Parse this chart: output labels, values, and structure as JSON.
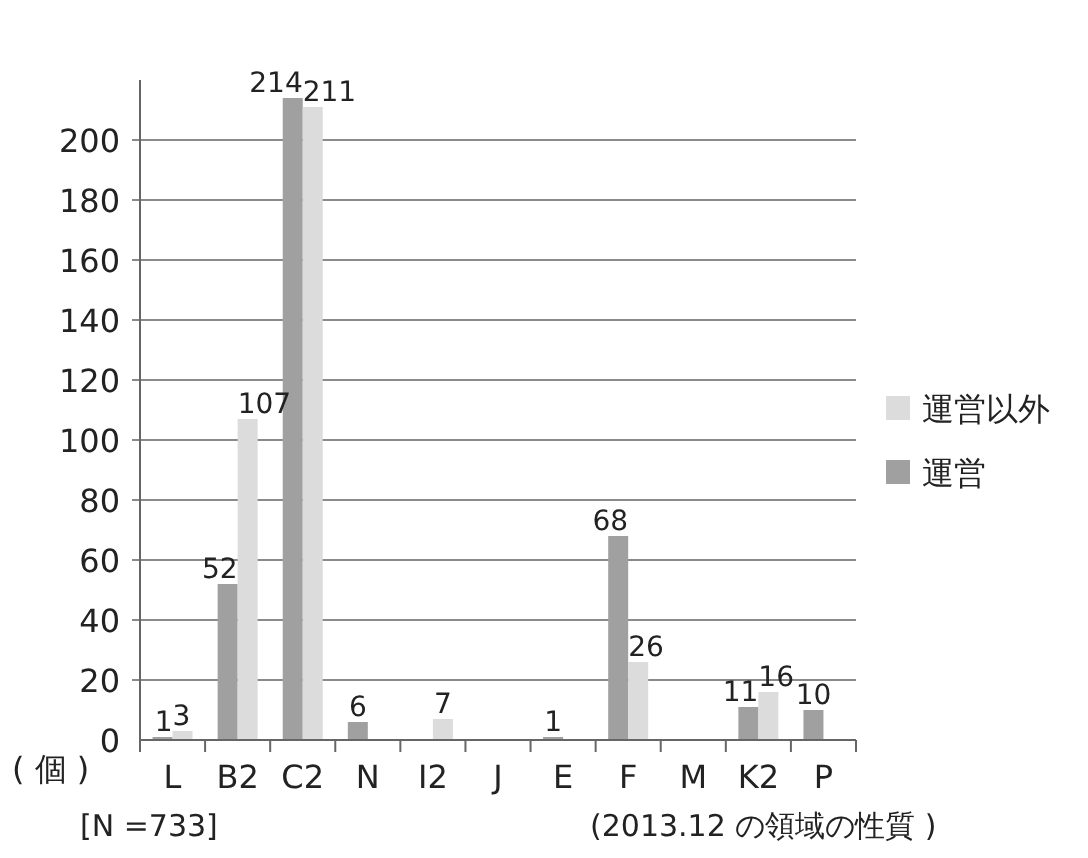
{
  "chart_data": {
    "type": "bar",
    "categories": [
      "L",
      "B2",
      "C2",
      "N",
      "I2",
      "J",
      "E",
      "F",
      "M",
      "K2",
      "P"
    ],
    "series": [
      {
        "name": "運営",
        "color": "#a0a0a0",
        "values": [
          1,
          52,
          214,
          6,
          null,
          null,
          1,
          68,
          null,
          11,
          10
        ]
      },
      {
        "name": "運営以外",
        "color": "#dcdcdc",
        "values": [
          3,
          107,
          211,
          null,
          7,
          null,
          null,
          26,
          null,
          16,
          null
        ]
      }
    ],
    "ylabel": "( 個 )",
    "ylim": [
      0,
      220
    ],
    "yticks": [
      0,
      20,
      40,
      60,
      80,
      100,
      120,
      140,
      160,
      180,
      200
    ],
    "grid": "y",
    "legend": "right",
    "data_labels": true,
    "annotations": [
      "[N =733]",
      "(2013.12 の領域の性質 )"
    ]
  }
}
